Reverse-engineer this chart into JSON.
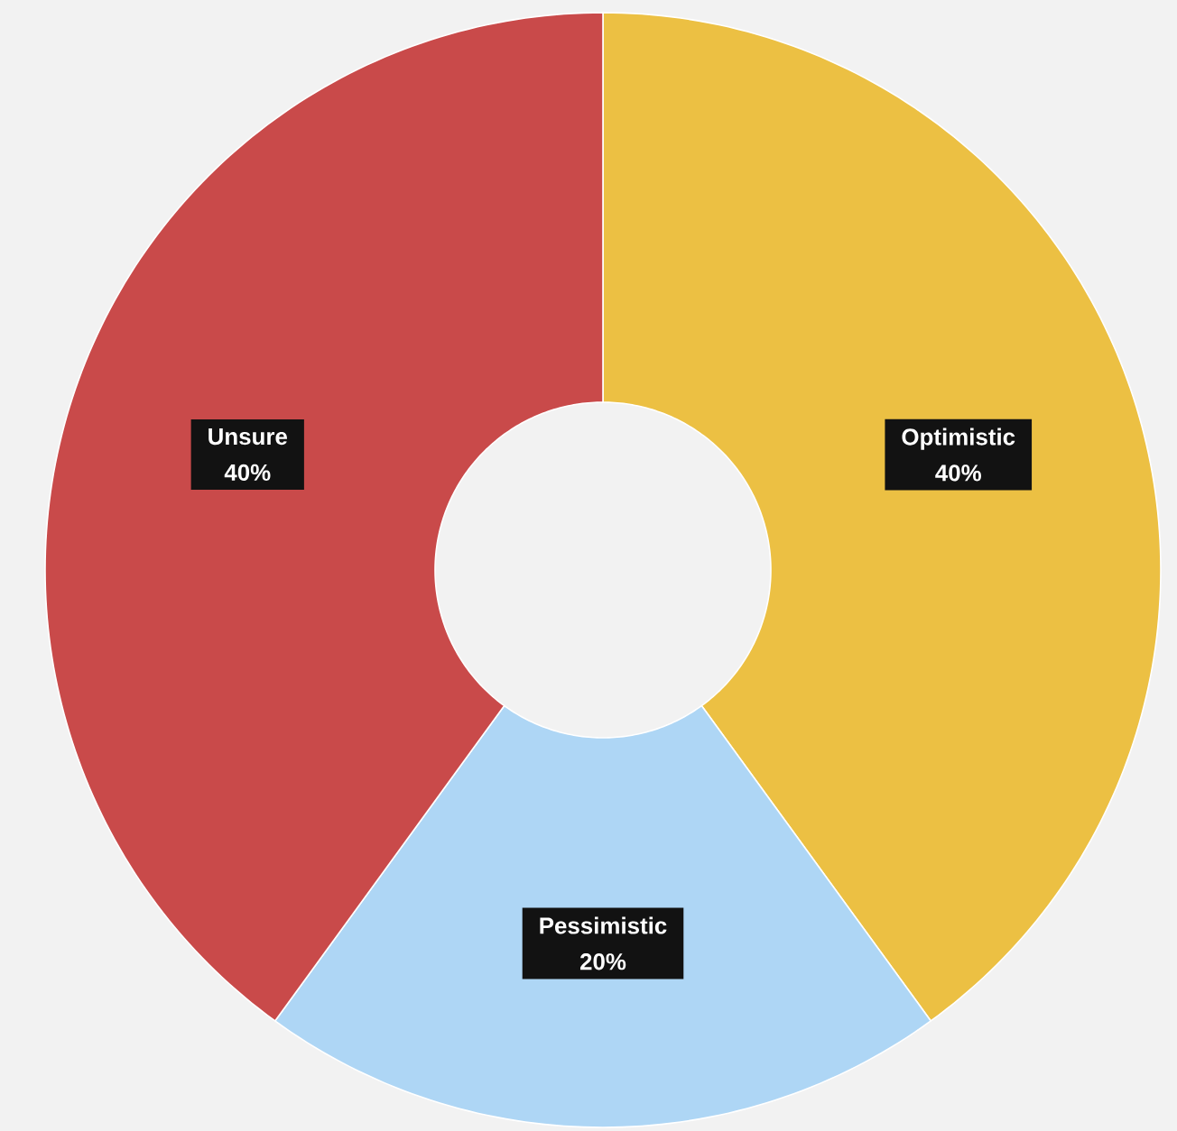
{
  "chart_data": {
    "type": "donut",
    "categories": [
      "Optimistic",
      "Pessimistic",
      "Unsure"
    ],
    "values": [
      40,
      20,
      40
    ],
    "value_labels": [
      "40%",
      "20%",
      "40%"
    ],
    "colors": [
      "#ecc043",
      "#aed6f5",
      "#c94a4a"
    ]
  }
}
